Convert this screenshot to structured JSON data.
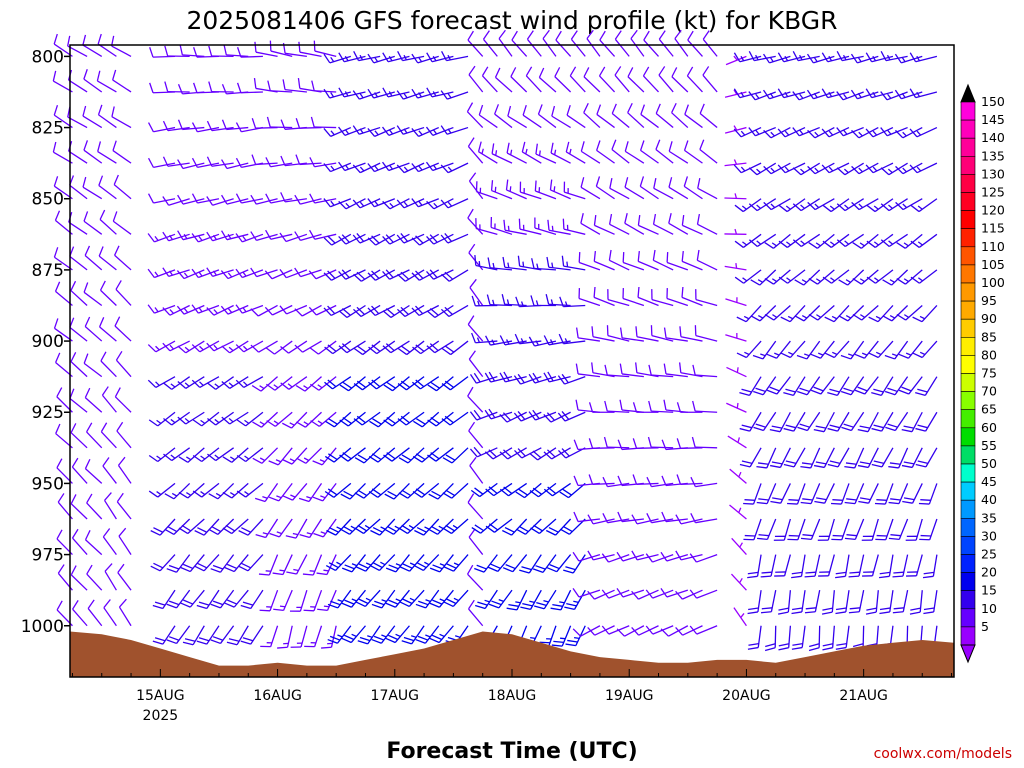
{
  "chart_data": {
    "type": "wind-barb-profile",
    "title": "2025081406 GFS forecast wind profile (kt) for KBGR",
    "xlabel": "Forecast Time (UTC)",
    "ylabel": "",
    "credit": "coolwx.com/models",
    "x_ticks": [
      {
        "label": "15AUG",
        "sublabel": "2025",
        "t": 18
      },
      {
        "label": "16AUG",
        "sublabel": "",
        "t": 42
      },
      {
        "label": "17AUG",
        "sublabel": "",
        "t": 66
      },
      {
        "label": "18AUG",
        "sublabel": "",
        "t": 90
      },
      {
        "label": "19AUG",
        "sublabel": "",
        "t": 114
      },
      {
        "label": "20AUG",
        "sublabel": "",
        "t": 138
      },
      {
        "label": "21AUG",
        "sublabel": "",
        "t": 162
      }
    ],
    "xlim_hours_since_14AUG06Z": [
      -0.5,
      180.5
    ],
    "y_ticks": [
      "800",
      "825",
      "850",
      "875",
      "900",
      "925",
      "950",
      "975",
      "1000"
    ],
    "ylim_hPa": [
      1018,
      796
    ],
    "colorbar": {
      "labels": [
        "150",
        "145",
        "140",
        "135",
        "130",
        "125",
        "120",
        "115",
        "110",
        "105",
        "100",
        "95",
        "90",
        "85",
        "80",
        "75",
        "70",
        "65",
        "60",
        "55",
        "50",
        "45",
        "40",
        "35",
        "30",
        "25",
        "20",
        "15",
        "10",
        "5"
      ],
      "colors": [
        "#ff00dd",
        "#ff00bb",
        "#ff0099",
        "#ff0077",
        "#ff0044",
        "#ff0022",
        "#ff0000",
        "#ff2200",
        "#ff5500",
        "#ff7700",
        "#ff9900",
        "#ffaa00",
        "#ffcc00",
        "#ffee00",
        "#ffff00",
        "#ccff00",
        "#88ff00",
        "#44ee00",
        "#00dd00",
        "#00dd66",
        "#00ffcc",
        "#00ccff",
        "#0099ff",
        "#0066ff",
        "#0044ff",
        "#0022ff",
        "#0000ee",
        "#3300ee",
        "#6600ff",
        "#9900ff"
      ],
      "top_cap_color": "#000000",
      "bottom_cap_color": "#9900ff"
    },
    "terrain_color": "#a0522d",
    "terrain_surface_pressure": [
      [
        -0.5,
        1002
      ],
      [
        6,
        1003
      ],
      [
        12,
        1005
      ],
      [
        18,
        1008
      ],
      [
        24,
        1011
      ],
      [
        30,
        1014
      ],
      [
        36,
        1014
      ],
      [
        42,
        1013
      ],
      [
        48,
        1014
      ],
      [
        54,
        1014
      ],
      [
        60,
        1012
      ],
      [
        66,
        1010
      ],
      [
        72,
        1008
      ],
      [
        78,
        1005
      ],
      [
        84,
        1002
      ],
      [
        90,
        1003
      ],
      [
        96,
        1006
      ],
      [
        102,
        1009
      ],
      [
        108,
        1011
      ],
      [
        114,
        1012
      ],
      [
        120,
        1013
      ],
      [
        126,
        1013
      ],
      [
        132,
        1012
      ],
      [
        138,
        1012
      ],
      [
        144,
        1013
      ],
      [
        150,
        1011
      ],
      [
        156,
        1009
      ],
      [
        162,
        1007
      ],
      [
        168,
        1006
      ],
      [
        174,
        1005
      ],
      [
        180.5,
        1006
      ]
    ],
    "barb_levels_hPa": [
      800,
      812.5,
      825,
      837.5,
      850,
      862.5,
      875,
      887.5,
      900,
      912.5,
      925,
      937.5,
      950,
      962.5,
      975,
      987.5,
      1000,
      1012.5
    ],
    "wind_regimes": [
      {
        "t0": 0,
        "t1": 6,
        "dir_top": 300,
        "dir_bottom": 320,
        "spd_top": 10,
        "spd_bottom": 10
      },
      {
        "t0": 6,
        "t1": 12,
        "dir_top": 300,
        "dir_bottom": 330,
        "spd_top": 10,
        "spd_bottom": 10
      },
      {
        "t0": 21,
        "t1": 39,
        "dir_top": 270,
        "dir_bottom": 210,
        "spd_top": 10,
        "spd_bottom": 20
      },
      {
        "t0": 42,
        "t1": 54,
        "dir_top": 280,
        "dir_bottom": 190,
        "spd_top": 10,
        "spd_bottom": 15
      },
      {
        "t0": 57,
        "t1": 81,
        "dir_top": 255,
        "dir_bottom": 215,
        "spd_top": 15,
        "spd_bottom": 25
      },
      {
        "t0": 84,
        "t1": 84,
        "dir_top": 320,
        "dir_bottom": 320,
        "spd_top": 10,
        "spd_bottom": 10
      },
      {
        "t0": 87,
        "t1": 90,
        "dir_top": 320,
        "dir_bottom": 200,
        "spd_top": 10,
        "spd_bottom": 25
      },
      {
        "t0": 93,
        "t1": 105,
        "dir_top": 320,
        "dir_bottom": 195,
        "spd_top": 10,
        "spd_bottom": 25
      },
      {
        "t0": 108,
        "t1": 132,
        "dir_top": 320,
        "dir_bottom": 240,
        "spd_top": 10,
        "spd_bottom": 10
      },
      {
        "t0": 138,
        "t1": 138,
        "dir_top": 250,
        "dir_bottom": 330,
        "spd_top": 5,
        "spd_bottom": 5
      },
      {
        "t0": 141,
        "t1": 177,
        "dir_top": 255,
        "dir_bottom": 180,
        "spd_top": 15,
        "spd_bottom": 20
      }
    ]
  }
}
